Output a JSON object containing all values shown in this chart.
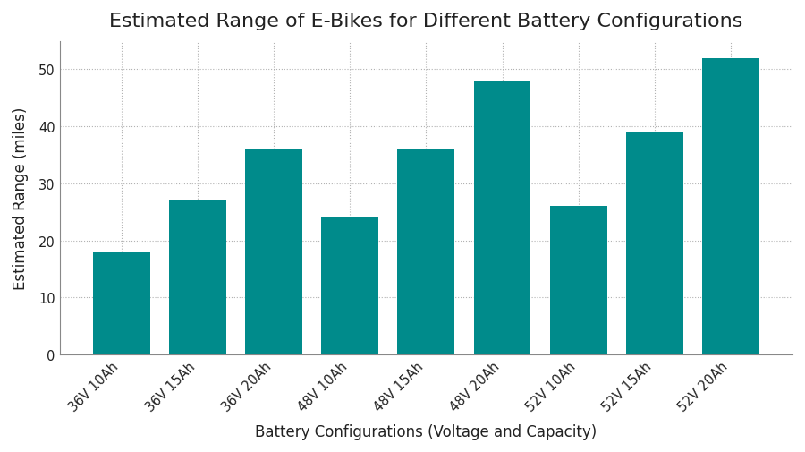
{
  "title": "Estimated Range of E-Bikes for Different Battery Configurations",
  "xlabel": "Battery Configurations (Voltage and Capacity)",
  "ylabel": "Estimated Range (miles)",
  "categories": [
    "36V 10Ah",
    "36V 15Ah",
    "36V 20Ah",
    "48V 10Ah",
    "48V 15Ah",
    "48V 20Ah",
    "52V 10Ah",
    "52V 15Ah",
    "52V 20Ah"
  ],
  "values": [
    18,
    27,
    36,
    24,
    36,
    48,
    26,
    39,
    52
  ],
  "bar_color": "#008B8B",
  "background_color": "#ffffff",
  "ylim": [
    0,
    55
  ],
  "yticks": [
    0,
    10,
    20,
    30,
    40,
    50
  ],
  "title_fontsize": 16,
  "label_fontsize": 12,
  "tick_fontsize": 10.5
}
